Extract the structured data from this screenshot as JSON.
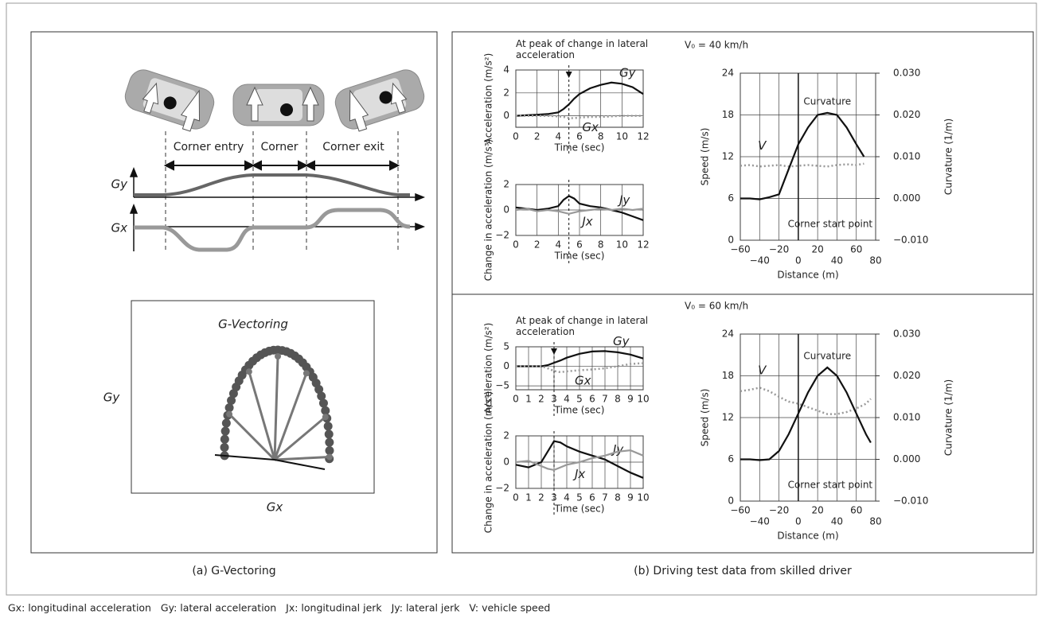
{
  "panel_a": {
    "phases": [
      "Corner entry",
      "Corner",
      "Corner exit"
    ],
    "gy_label": "Gy",
    "gx_label": "Gx",
    "vector_title": "G-Vectoring",
    "vector_y": "Gy",
    "vector_x": "Gx",
    "caption": "(a) G-Vectoring"
  },
  "panel_b_caption": "(b) Driving test data from skilled driver",
  "footnote": "Gx: longitudinal acceleration   Gy: lateral acceleration   Jx: longitudinal jerk   Jy: lateral jerk   V: vehicle speed",
  "chart_data": [
    {
      "type": "line",
      "title": "At peak of change in lateral acceleration",
      "x_label": "Time (sec)",
      "y_label": "Acceleration (m/s²)",
      "x": [
        0,
        1,
        2,
        3,
        4,
        4.5,
        5,
        5.5,
        6,
        7,
        8,
        9,
        10,
        11,
        12
      ],
      "series": [
        {
          "name": "Gy",
          "color": "#111111",
          "style": "solid",
          "values": [
            0,
            0.05,
            0.1,
            0.15,
            0.3,
            0.6,
            1.0,
            1.5,
            1.9,
            2.4,
            2.7,
            2.9,
            2.8,
            2.5,
            1.9
          ]
        },
        {
          "name": "Gx",
          "color": "#999999",
          "style": "dotted",
          "values": [
            0,
            0,
            0,
            0,
            -0.05,
            -0.1,
            -0.2,
            -0.2,
            -0.15,
            -0.1,
            -0.1,
            -0.05,
            0,
            0,
            0
          ]
        }
      ],
      "xlim": [
        0,
        12
      ],
      "ylim": [
        -1,
        4
      ],
      "xticks": [
        0,
        2,
        4,
        6,
        8,
        10,
        12
      ],
      "yticks": [
        0,
        2,
        4
      ],
      "grid": true,
      "peak_time": 5
    },
    {
      "type": "line",
      "x_label": "Time (sec)",
      "y_label": "Change in acceleration (m/s³)",
      "x": [
        0,
        1,
        2,
        3,
        4,
        4.5,
        5,
        5.5,
        6,
        7,
        8,
        9,
        10,
        11,
        12
      ],
      "series": [
        {
          "name": "Jy",
          "color": "#111111",
          "style": "solid",
          "values": [
            0.2,
            0.1,
            0,
            0.1,
            0.3,
            0.8,
            1.1,
            0.9,
            0.5,
            0.3,
            0.2,
            0,
            -0.2,
            -0.5,
            -0.8
          ]
        },
        {
          "name": "Jx",
          "color": "#999999",
          "style": "solid",
          "values": [
            0,
            0.1,
            -0.1,
            0,
            -0.1,
            -0.2,
            -0.3,
            -0.2,
            -0.1,
            0,
            0.1,
            0,
            0.1,
            0,
            0.1
          ]
        }
      ],
      "xlim": [
        0,
        12
      ],
      "ylim": [
        -2,
        2
      ],
      "xticks": [
        0,
        2,
        4,
        6,
        8,
        10,
        12
      ],
      "yticks": [
        {
          "value": -2,
          "label": "−2"
        },
        0,
        2
      ],
      "grid": true,
      "peak_time": 5
    },
    {
      "type": "line",
      "title": "V₀ = 40 km/h",
      "x_label": "Distance (m)",
      "y_label": "Speed (m/s)",
      "y2_label": "Curvature (1/m)",
      "x": [
        -60,
        -50,
        -40,
        -30,
        -20,
        -10,
        0,
        10,
        20,
        30,
        40,
        50,
        60,
        68
      ],
      "series": [
        {
          "name": "V",
          "color": "#999999",
          "style": "dotted",
          "values": [
            10.7,
            10.8,
            10.6,
            10.7,
            10.8,
            10.6,
            10.7,
            10.8,
            10.7,
            10.6,
            10.8,
            10.9,
            10.8,
            11.0
          ]
        },
        {
          "name": "Curvature",
          "color": "#111111",
          "style": "solid",
          "axis": "y2",
          "values": [
            0,
            0,
            -0.0002,
            0.0003,
            0.001,
            0.007,
            0.013,
            0.017,
            0.02,
            0.0205,
            0.02,
            0.017,
            0.013,
            0.01
          ]
        }
      ],
      "xlim": [
        -60,
        80
      ],
      "ylim": [
        0,
        24
      ],
      "y2lim": [
        -0.01,
        0.03
      ],
      "xticks": [
        {
          "value": -60,
          "label": "−60"
        },
        {
          "value": -40,
          "label": "−40"
        },
        {
          "value": -20,
          "label": "−20"
        },
        0,
        20,
        40,
        60,
        80
      ],
      "yticks": [
        0,
        6,
        12,
        18,
        24
      ],
      "y2ticks": [
        {
          "value": -0.01,
          "label": "−0.010"
        },
        {
          "value": 0,
          "label": "0.000"
        },
        {
          "value": 0.01,
          "label": "0.010"
        },
        {
          "value": 0.02,
          "label": "0.020"
        },
        {
          "value": 0.03,
          "label": "0.030"
        }
      ],
      "grid": true,
      "annotations": [
        {
          "text": "Corner start point",
          "x": 0
        }
      ]
    },
    {
      "type": "line",
      "title": "At peak of change in lateral acceleration",
      "x_label": "Time (sec)",
      "y_label": "Acceleration (m/s²)",
      "x": [
        0,
        1,
        2,
        2.5,
        3,
        3.5,
        4,
        5,
        6,
        7,
        8,
        9,
        10
      ],
      "series": [
        {
          "name": "Gy",
          "color": "#111111",
          "style": "solid",
          "values": [
            0,
            0,
            0,
            0.3,
            0.9,
            1.5,
            2.2,
            3.2,
            3.8,
            3.9,
            3.6,
            3,
            2
          ]
        },
        {
          "name": "Gx",
          "color": "#999999",
          "style": "dotted",
          "values": [
            0,
            0,
            0,
            -0.5,
            -1.2,
            -1.5,
            -1.3,
            -1,
            -0.8,
            -0.5,
            0,
            0.6,
            0.8
          ]
        }
      ],
      "xlim": [
        0,
        10
      ],
      "ylim": [
        -6,
        5
      ],
      "xticks": [
        0,
        1,
        2,
        3,
        4,
        5,
        6,
        7,
        8,
        9,
        10
      ],
      "yticks": [
        {
          "value": -5,
          "label": "−5"
        },
        0,
        5
      ],
      "grid": true,
      "peak_time": 3
    },
    {
      "type": "line",
      "x_label": "Time (sec)",
      "y_label": "Change in acceleration (m/s³)",
      "x": [
        0,
        1,
        2,
        2.5,
        3,
        3.5,
        4,
        5,
        6,
        7,
        8,
        9,
        10
      ],
      "series": [
        {
          "name": "Jy",
          "color": "#111111",
          "style": "solid",
          "values": [
            -0.2,
            -0.4,
            0,
            0.8,
            1.6,
            1.5,
            1.2,
            0.8,
            0.5,
            0.2,
            -0.3,
            -0.8,
            -1.2
          ]
        },
        {
          "name": "Jx",
          "color": "#999999",
          "style": "solid",
          "values": [
            0,
            0.1,
            -0.3,
            -0.5,
            -0.6,
            -0.4,
            -0.2,
            0,
            0.3,
            0.5,
            0.8,
            0.9,
            0.5
          ]
        }
      ],
      "xlim": [
        0,
        10
      ],
      "ylim": [
        -2,
        2
      ],
      "xticks": [
        0,
        1,
        2,
        3,
        4,
        5,
        6,
        7,
        8,
        9,
        10
      ],
      "yticks": [
        {
          "value": -2,
          "label": "−2"
        },
        0,
        2
      ],
      "grid": true,
      "peak_time": 3
    },
    {
      "type": "line",
      "title": "V₀ = 60 km/h",
      "x_label": "Distance (m)",
      "y_label": "Speed (m/s)",
      "y2_label": "Curvature (1/m)",
      "x": [
        -60,
        -50,
        -40,
        -30,
        -20,
        -10,
        0,
        10,
        20,
        30,
        40,
        50,
        60,
        70,
        75
      ],
      "series": [
        {
          "name": "V",
          "color": "#999999",
          "style": "dotted",
          "values": [
            15.8,
            16,
            16.3,
            15.8,
            15,
            14.3,
            14,
            13.5,
            13,
            12.5,
            12.5,
            12.8,
            13.3,
            14,
            14.7
          ]
        },
        {
          "name": "Curvature",
          "color": "#111111",
          "style": "solid",
          "axis": "y2",
          "values": [
            0,
            0,
            -0.0002,
            0,
            0.002,
            0.006,
            0.011,
            0.016,
            0.02,
            0.022,
            0.02,
            0.016,
            0.011,
            0.006,
            0.004
          ]
        }
      ],
      "xlim": [
        -60,
        80
      ],
      "ylim": [
        0,
        24
      ],
      "y2lim": [
        -0.01,
        0.03
      ],
      "xticks": [
        {
          "value": -60,
          "label": "−60"
        },
        {
          "value": -40,
          "label": "−40"
        },
        {
          "value": -20,
          "label": "−20"
        },
        0,
        20,
        40,
        60,
        80
      ],
      "yticks": [
        0,
        6,
        12,
        18,
        24
      ],
      "y2ticks": [
        {
          "value": -0.01,
          "label": "−0.010"
        },
        {
          "value": 0,
          "label": "0.000"
        },
        {
          "value": 0.01,
          "label": "0.010"
        },
        {
          "value": 0.02,
          "label": "0.020"
        },
        {
          "value": 0.03,
          "label": "0.030"
        }
      ],
      "grid": true,
      "annotations": [
        {
          "text": "Corner start point",
          "x": 0
        }
      ]
    }
  ]
}
